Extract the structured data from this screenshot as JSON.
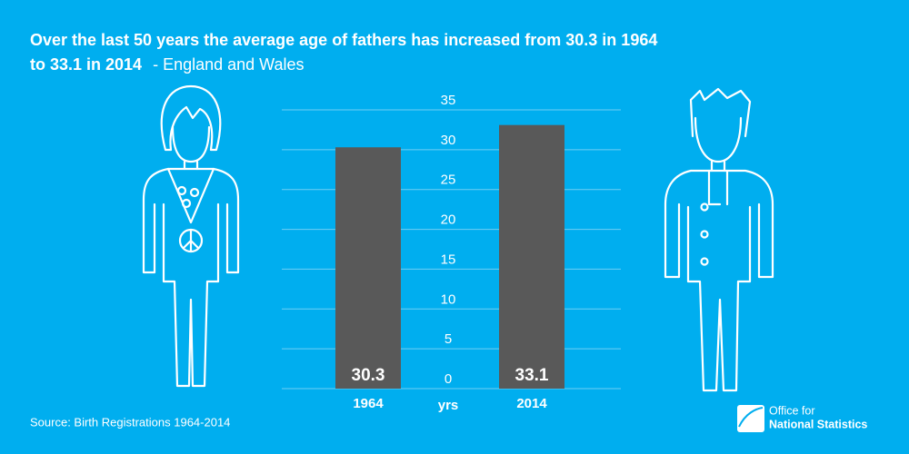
{
  "chart_data": {
    "type": "bar",
    "title": [
      "Over the last 50 years the average age of fathers has increased from 30.3 in 1964",
      "to 33.1 in 2014"
    ],
    "subtitle": "- England and Wales",
    "y_label": "yrs",
    "categories": [
      "1964",
      "2014"
    ],
    "values": [
      30.3,
      33.1
    ],
    "color": "#595959",
    "ylim": [
      0,
      35
    ],
    "yticks": [
      0,
      5,
      10,
      15,
      20,
      25,
      30,
      35
    ],
    "grid": true
  },
  "footer": {
    "source": "Source: Birth Registrations 1964-2014",
    "logo": [
      "Office for",
      "National Statistics"
    ]
  }
}
